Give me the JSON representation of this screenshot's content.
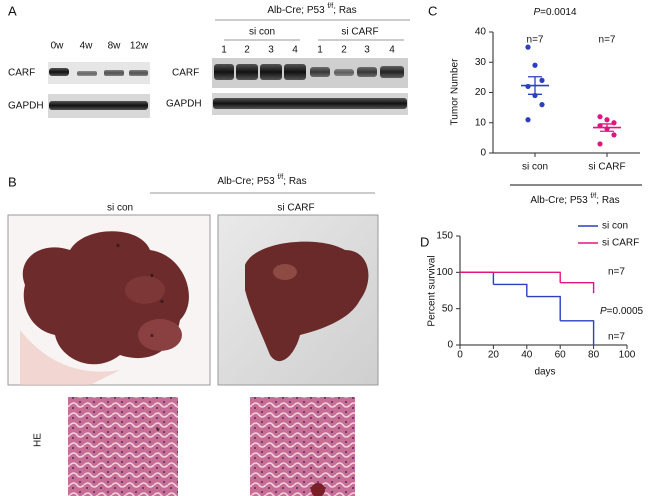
{
  "panel_labels": [
    "A",
    "B",
    "C",
    "D"
  ],
  "panel_a": {
    "timecourse": {
      "lanes": [
        "0w",
        "4w",
        "8w",
        "12w"
      ],
      "rows": [
        "CARF",
        "GAPDH"
      ]
    },
    "knockdown": {
      "header": [
        "Alb-Cre; P53 ",
        "f/f",
        "; Ras"
      ],
      "groups": [
        "si con",
        "si CARF"
      ],
      "lanes": [
        "1",
        "2",
        "3",
        "4",
        "1",
        "2",
        "3",
        "4"
      ],
      "rows": [
        "CARF",
        "GAPDH"
      ]
    }
  },
  "panel_b": {
    "header": [
      "Alb-Cre; P53 ",
      "f/f",
      "; Ras"
    ],
    "groups": [
      "si con",
      "si CARF"
    ],
    "tumor_mark": "*",
    "stain": "HE"
  },
  "chart_data": [
    {
      "type": "scatter",
      "title": [
        "P",
        "=0.0014"
      ],
      "ylabel": "Tumor Number",
      "ylim": [
        0,
        40
      ],
      "yticks": [
        0,
        10,
        20,
        30,
        40
      ],
      "categories": [
        "si con",
        "si CARF"
      ],
      "groups": [
        {
          "n_label": "n=7",
          "color": "#2b3fbf",
          "values": [
            35,
            29,
            24,
            22,
            19,
            16,
            11
          ],
          "mean": 22.3,
          "sem": 2.9
        },
        {
          "n_label": "n=7",
          "color": "#e0157f",
          "values": [
            12,
            11,
            10,
            9,
            8,
            6,
            3
          ],
          "mean": 8.4,
          "sem": 1.2
        }
      ],
      "xlabel": [
        "Alb-Cre; P53 ",
        "f/f",
        "; Ras"
      ]
    },
    {
      "type": "line",
      "step": true,
      "xlabel": "days",
      "ylabel": "Percent survival",
      "xlim": [
        0,
        100
      ],
      "xticks": [
        0,
        20,
        40,
        60,
        80,
        100
      ],
      "ylim": [
        0,
        150
      ],
      "yticks": [
        0,
        50,
        100,
        150
      ],
      "legend": "upper right",
      "series": [
        {
          "name": "si con",
          "color": "#2b3fbf",
          "x": [
            0,
            20,
            40,
            60,
            80
          ],
          "values": [
            100,
            83.3,
            66.7,
            33.3,
            0
          ]
        },
        {
          "name": "si CARF",
          "color": "#e0157f",
          "x": [
            0,
            60,
            80
          ],
          "values": [
            100,
            85.7,
            71.4
          ]
        }
      ],
      "annotations": {
        "n_si_carf": "n=7",
        "p_value": [
          "P",
          "=0.0005"
        ],
        "n_si_con": "n=7"
      }
    }
  ]
}
